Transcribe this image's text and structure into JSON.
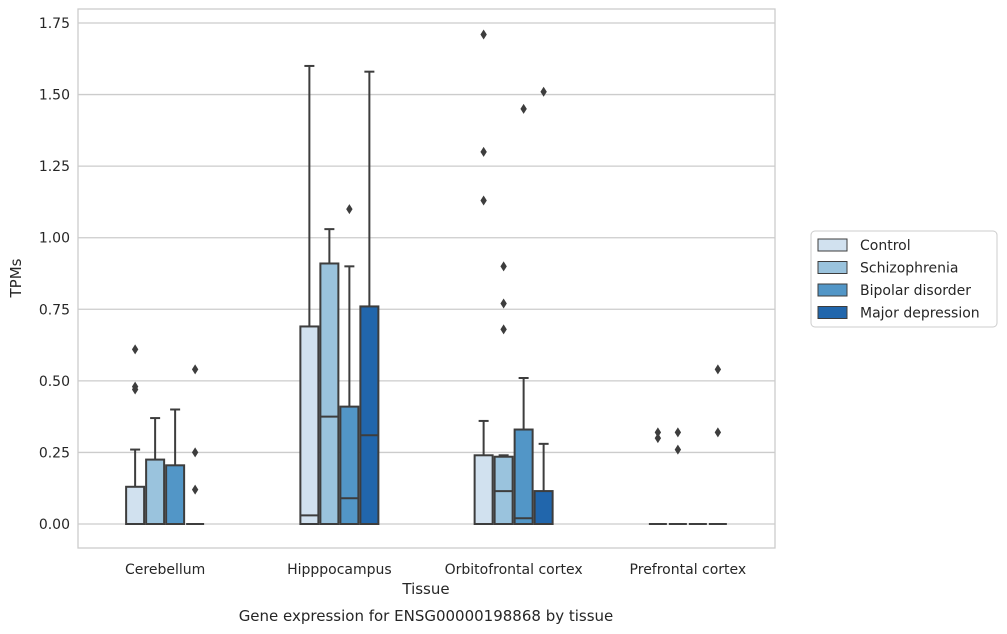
{
  "chart_data": {
    "type": "box",
    "title": "",
    "caption": "Gene expression for ENSG00000198868 by tissue",
    "xlabel": "Tissue",
    "ylabel": "TPMs",
    "ylim": [
      -0.085,
      1.8
    ],
    "yticks": [
      0.0,
      0.25,
      0.5,
      0.75,
      1.0,
      1.25,
      1.5,
      1.75
    ],
    "ytick_labels": [
      "0.00",
      "0.25",
      "0.50",
      "0.75",
      "1.00",
      "1.25",
      "1.50",
      "1.75"
    ],
    "grid": "horizontal",
    "legend_position": "right",
    "categories": [
      "Cerebellum",
      "Hipppocampus",
      "Orbitofrontal cortex",
      "Prefrontal cortex"
    ],
    "series": [
      {
        "name": "Control",
        "color": "#d1e1ef",
        "boxes": [
          {
            "q1": 0.0,
            "median": 0.0,
            "q3": 0.13,
            "whisker_low": 0.0,
            "whisker_high": 0.26,
            "outliers": [
              0.47,
              0.48,
              0.61
            ]
          },
          {
            "q1": 0.0,
            "median": 0.03,
            "q3": 0.69,
            "whisker_low": 0.0,
            "whisker_high": 1.6,
            "outliers": []
          },
          {
            "q1": 0.0,
            "median": 0.0,
            "q3": 0.24,
            "whisker_low": 0.0,
            "whisker_high": 0.36,
            "outliers": [
              1.13,
              1.3,
              1.71
            ]
          },
          {
            "q1": 0.0,
            "median": 0.0,
            "q3": 0.0,
            "whisker_low": 0.0,
            "whisker_high": 0.0,
            "outliers": [
              0.3,
              0.32
            ]
          }
        ]
      },
      {
        "name": "Schizophrenia",
        "color": "#9ac3dd",
        "boxes": [
          {
            "q1": 0.0,
            "median": 0.0,
            "q3": 0.225,
            "whisker_low": 0.0,
            "whisker_high": 0.37,
            "outliers": []
          },
          {
            "q1": 0.0,
            "median": 0.375,
            "q3": 0.91,
            "whisker_low": 0.0,
            "whisker_high": 1.03,
            "outliers": []
          },
          {
            "q1": 0.0,
            "median": 0.115,
            "q3": 0.235,
            "whisker_low": 0.0,
            "whisker_high": 0.24,
            "outliers": [
              0.68,
              0.77,
              0.9
            ]
          },
          {
            "q1": 0.0,
            "median": 0.0,
            "q3": 0.0,
            "whisker_low": 0.0,
            "whisker_high": 0.0,
            "outliers": [
              0.26,
              0.32
            ]
          }
        ]
      },
      {
        "name": "Bipolar disorder",
        "color": "#5296c7",
        "boxes": [
          {
            "q1": 0.0,
            "median": 0.0,
            "q3": 0.205,
            "whisker_low": 0.0,
            "whisker_high": 0.4,
            "outliers": []
          },
          {
            "q1": 0.0,
            "median": 0.09,
            "q3": 0.41,
            "whisker_low": 0.0,
            "whisker_high": 0.9,
            "outliers": [
              1.1
            ]
          },
          {
            "q1": 0.0,
            "median": 0.02,
            "q3": 0.33,
            "whisker_low": 0.0,
            "whisker_high": 0.51,
            "outliers": [
              1.45
            ]
          },
          {
            "q1": 0.0,
            "median": 0.0,
            "q3": 0.0,
            "whisker_low": 0.0,
            "whisker_high": 0.0,
            "outliers": []
          }
        ]
      },
      {
        "name": "Major depression",
        "color": "#2166ac",
        "boxes": [
          {
            "q1": 0.0,
            "median": 0.0,
            "q3": 0.0,
            "whisker_low": 0.0,
            "whisker_high": 0.0,
            "outliers": [
              0.12,
              0.25,
              0.54
            ]
          },
          {
            "q1": 0.0,
            "median": 0.31,
            "q3": 0.76,
            "whisker_low": 0.0,
            "whisker_high": 1.58,
            "outliers": []
          },
          {
            "q1": 0.0,
            "median": 0.0,
            "q3": 0.115,
            "whisker_low": 0.0,
            "whisker_high": 0.28,
            "outliers": [
              1.51
            ]
          },
          {
            "q1": 0.0,
            "median": 0.0,
            "q3": 0.0,
            "whisker_low": 0.0,
            "whisker_high": 0.0,
            "outliers": [
              0.32,
              0.54
            ]
          }
        ]
      }
    ]
  }
}
